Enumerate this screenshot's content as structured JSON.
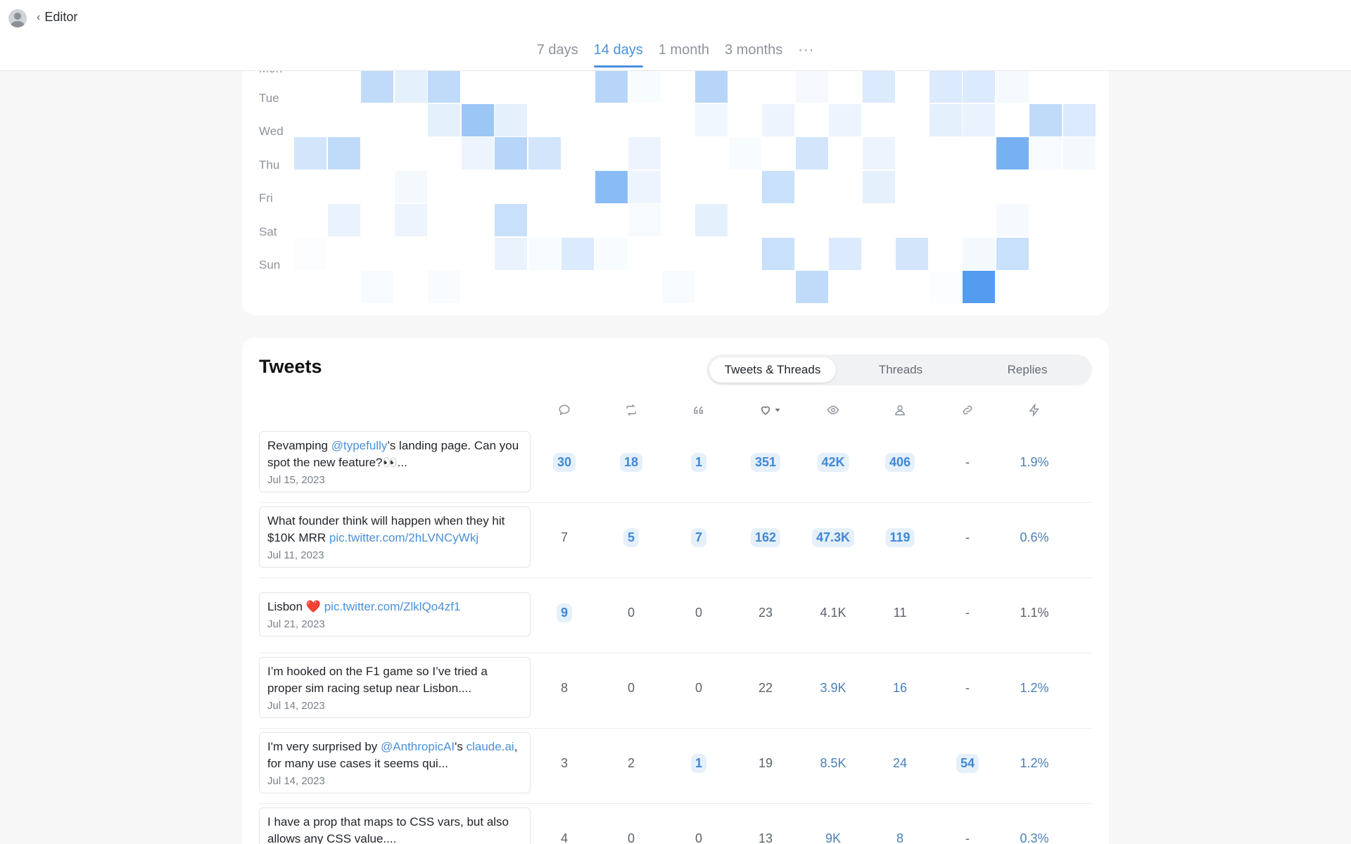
{
  "header": {
    "back_label": "Editor",
    "range_tabs": [
      "7 days",
      "14 days",
      "1 month",
      "3 months"
    ],
    "active_range": "14 days",
    "more_label": "···"
  },
  "heatmap": {
    "days": [
      "Mon",
      "Tue",
      "Wed",
      "Thu",
      "Fri",
      "Sat",
      "Sun"
    ],
    "color": "#4a97ee",
    "intensity": [
      [
        0,
        0,
        0.35,
        0.15,
        0.35,
        0,
        0,
        0,
        0,
        0.4,
        0.03,
        0,
        0.4,
        0,
        0,
        0.05,
        0,
        0.2,
        0,
        0.2,
        0.2,
        0.05,
        0,
        0,
        0
      ],
      [
        0,
        0,
        0,
        0,
        0.15,
        0.55,
        0.15,
        0,
        0,
        0,
        0,
        0,
        0.08,
        0,
        0.1,
        0,
        0.1,
        0,
        0,
        0.15,
        0.12,
        0,
        0.35,
        0.2,
        0
      ],
      [
        0.25,
        0.35,
        0,
        0,
        0,
        0.1,
        0.4,
        0.25,
        0,
        0,
        0.1,
        0,
        0,
        0.03,
        0,
        0.25,
        0,
        0.1,
        0,
        0,
        0,
        0.75,
        0.04,
        0.06,
        0
      ],
      [
        0,
        0,
        0,
        0.06,
        0,
        0,
        0,
        0,
        0,
        0.65,
        0.1,
        0,
        0,
        0,
        0.3,
        0,
        0,
        0.15,
        0,
        0,
        0,
        0,
        0,
        0,
        0
      ],
      [
        0,
        0.12,
        0,
        0.1,
        0,
        0,
        0.3,
        0,
        0,
        0,
        0.04,
        0,
        0.15,
        0,
        0,
        0,
        0,
        0,
        0,
        0,
        0,
        0.05,
        0,
        0,
        0
      ],
      [
        0.02,
        0,
        0,
        0,
        0,
        0,
        0.12,
        0.04,
        0.2,
        0.03,
        0,
        0,
        0,
        0,
        0.3,
        0,
        0.2,
        0,
        0.25,
        0,
        0.06,
        0.3,
        0,
        0,
        0
      ],
      [
        0,
        0,
        0.04,
        0,
        0.03,
        0,
        0,
        0,
        0,
        0,
        0,
        0.04,
        0,
        0,
        0,
        0.35,
        0,
        0,
        0,
        0.02,
        0.95,
        0,
        0,
        0,
        0
      ]
    ]
  },
  "tweets": {
    "title": "Tweets",
    "filters": [
      "Tweets & Threads",
      "Threads",
      "Replies"
    ],
    "active_filter": "Tweets & Threads",
    "columns": [
      {
        "icon": "comment-icon",
        "key": "replies"
      },
      {
        "icon": "retweet-icon",
        "key": "retweets"
      },
      {
        "icon": "quote-icon",
        "key": "quotes"
      },
      {
        "icon": "heart-sort-icon",
        "key": "likes"
      },
      {
        "icon": "eye-icon",
        "key": "impressions"
      },
      {
        "icon": "user-icon",
        "key": "profile_visits"
      },
      {
        "icon": "link-icon",
        "key": "link_clicks"
      },
      {
        "icon": "bolt-icon",
        "key": "engagement"
      }
    ],
    "rows": [
      {
        "text": [
          {
            "t": "Revamping "
          },
          {
            "t": "@typefully",
            "link": true
          },
          {
            "t": "’s landing page. Can you spot the new feature?👀..."
          }
        ],
        "date": "Jul 15, 2023",
        "metrics": [
          {
            "v": "30",
            "s": "hl"
          },
          {
            "v": "18",
            "s": "hl"
          },
          {
            "v": "1",
            "s": "hl"
          },
          {
            "v": "351",
            "s": "hl"
          },
          {
            "v": "42K",
            "s": "hl"
          },
          {
            "v": "406",
            "s": "hl"
          },
          {
            "v": "-",
            "s": ""
          },
          {
            "v": "1.9%",
            "s": "blue"
          }
        ]
      },
      {
        "text": [
          {
            "t": "What founder think will happen when they hit $10K MRR "
          },
          {
            "t": "pic.twitter.com/2hLVNCyWkj",
            "link": true
          }
        ],
        "date": "Jul 11, 2023",
        "metrics": [
          {
            "v": "7",
            "s": ""
          },
          {
            "v": "5",
            "s": "hl"
          },
          {
            "v": "7",
            "s": "hl"
          },
          {
            "v": "162",
            "s": "hl"
          },
          {
            "v": "47.3K",
            "s": "hl"
          },
          {
            "v": "119",
            "s": "hl"
          },
          {
            "v": "-",
            "s": ""
          },
          {
            "v": "0.6%",
            "s": "blue"
          }
        ]
      },
      {
        "text": [
          {
            "t": "Lisbon ❤️ "
          },
          {
            "t": "pic.twitter.com/ZlklQo4zf1",
            "link": true
          }
        ],
        "date": "Jul 21, 2023",
        "metrics": [
          {
            "v": "9",
            "s": "hl"
          },
          {
            "v": "0",
            "s": ""
          },
          {
            "v": "0",
            "s": ""
          },
          {
            "v": "23",
            "s": ""
          },
          {
            "v": "4.1K",
            "s": ""
          },
          {
            "v": "11",
            "s": ""
          },
          {
            "v": "-",
            "s": ""
          },
          {
            "v": "1.1%",
            "s": ""
          }
        ]
      },
      {
        "text": [
          {
            "t": "I’m hooked on the F1 game so I’ve tried a proper sim racing setup near Lisbon...."
          }
        ],
        "date": "Jul 14, 2023",
        "metrics": [
          {
            "v": "8",
            "s": ""
          },
          {
            "v": "0",
            "s": ""
          },
          {
            "v": "0",
            "s": ""
          },
          {
            "v": "22",
            "s": ""
          },
          {
            "v": "3.9K",
            "s": "blue"
          },
          {
            "v": "16",
            "s": "blue"
          },
          {
            "v": "-",
            "s": ""
          },
          {
            "v": "1.2%",
            "s": "blue"
          }
        ]
      },
      {
        "text": [
          {
            "t": "I'm very surprised by "
          },
          {
            "t": "@AnthropicAI",
            "link": true
          },
          {
            "t": "'s "
          },
          {
            "t": "claude.ai",
            "link": true
          },
          {
            "t": ", for many use cases it seems qui..."
          }
        ],
        "date": "Jul 14, 2023",
        "metrics": [
          {
            "v": "3",
            "s": ""
          },
          {
            "v": "2",
            "s": ""
          },
          {
            "v": "1",
            "s": "hl"
          },
          {
            "v": "19",
            "s": ""
          },
          {
            "v": "8.5K",
            "s": "blue"
          },
          {
            "v": "24",
            "s": "blue"
          },
          {
            "v": "54",
            "s": "hl"
          },
          {
            "v": "1.2%",
            "s": "blue"
          }
        ]
      },
      {
        "text": [
          {
            "t": "I have a prop that maps to CSS vars, but also allows any CSS value...."
          }
        ],
        "date": "",
        "metrics": [
          {
            "v": "4",
            "s": ""
          },
          {
            "v": "0",
            "s": ""
          },
          {
            "v": "0",
            "s": ""
          },
          {
            "v": "13",
            "s": ""
          },
          {
            "v": "9K",
            "s": "blue"
          },
          {
            "v": "8",
            "s": "blue"
          },
          {
            "v": "-",
            "s": ""
          },
          {
            "v": "0.3%",
            "s": "blue"
          }
        ]
      }
    ]
  }
}
